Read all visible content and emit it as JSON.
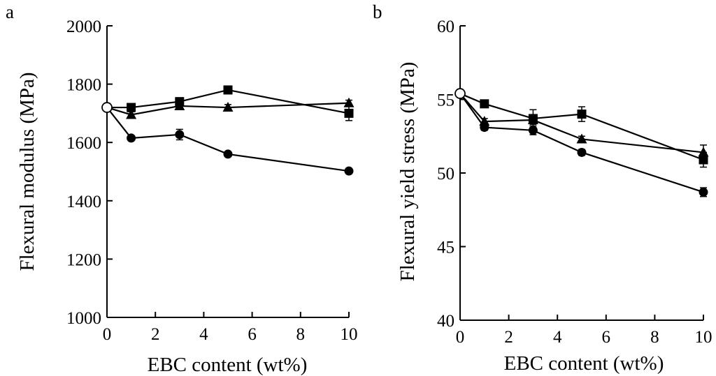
{
  "chart_data": [
    {
      "type": "line",
      "panel_label": "a",
      "xlabel": "EBC content (wt%)",
      "ylabel": "Flexural modulus (MPa)",
      "xlim": [
        0,
        10
      ],
      "ylim": [
        1000,
        2000
      ],
      "xticks": [
        0,
        2,
        4,
        6,
        8,
        10
      ],
      "yticks": [
        1000,
        1200,
        1400,
        1600,
        1800,
        2000
      ],
      "grid": false,
      "origin_point": {
        "x": 0,
        "y": 1720,
        "marker": "open-circle"
      },
      "series": [
        {
          "name": "square",
          "marker": "square",
          "x": [
            0,
            1,
            3,
            5,
            10
          ],
          "y": [
            1720,
            1720,
            1740,
            1780,
            1700
          ],
          "err": [
            0,
            8,
            10,
            8,
            25
          ]
        },
        {
          "name": "triangle",
          "marker": "triangle",
          "x": [
            0,
            1,
            3,
            5,
            10
          ],
          "y": [
            1720,
            1695,
            1725,
            1720,
            1735
          ],
          "err": [
            0,
            10,
            10,
            10,
            10
          ]
        },
        {
          "name": "circle",
          "marker": "circle",
          "x": [
            0,
            1,
            3,
            5,
            10
          ],
          "y": [
            1720,
            1615,
            1627,
            1560,
            1502
          ],
          "err": [
            0,
            8,
            18,
            6,
            6
          ]
        }
      ]
    },
    {
      "type": "line",
      "panel_label": "b",
      "xlabel": "EBC content (wt%)",
      "ylabel": "Flexural yield stress (MPa)",
      "xlim": [
        0,
        10
      ],
      "ylim": [
        40,
        60
      ],
      "xticks": [
        0,
        2,
        4,
        6,
        8,
        10
      ],
      "yticks": [
        40,
        45,
        50,
        55,
        60
      ],
      "grid": false,
      "origin_point": {
        "x": 0,
        "y": 55.4,
        "marker": "open-circle"
      },
      "series": [
        {
          "name": "square",
          "marker": "square",
          "x": [
            0,
            1,
            3,
            5,
            10
          ],
          "y": [
            55.4,
            54.7,
            53.7,
            54.0,
            50.9
          ],
          "err": [
            0,
            0.2,
            0.6,
            0.5,
            0.5
          ]
        },
        {
          "name": "triangle",
          "marker": "triangle",
          "x": [
            0,
            1,
            3,
            5,
            10
          ],
          "y": [
            55.4,
            53.5,
            53.6,
            52.3,
            51.4
          ],
          "err": [
            0,
            0.2,
            0.3,
            0.2,
            0.5
          ]
        },
        {
          "name": "circle",
          "marker": "circle",
          "x": [
            0,
            1,
            3,
            5,
            10
          ],
          "y": [
            55.4,
            53.1,
            52.9,
            51.4,
            48.7
          ],
          "err": [
            0,
            0.2,
            0.3,
            0.2,
            0.3
          ]
        }
      ]
    }
  ]
}
